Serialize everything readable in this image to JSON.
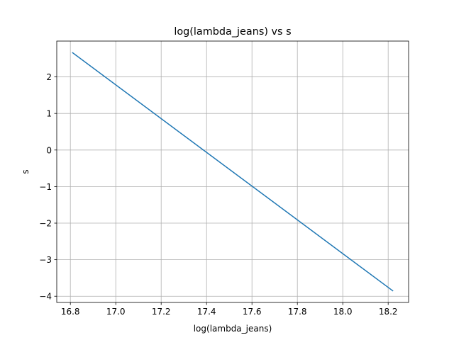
{
  "chart_data": {
    "type": "line",
    "title": "log(lambda_jeans) vs s",
    "xlabel": "log(lambda_jeans)",
    "ylabel": "s",
    "xlim": [
      16.74,
      18.29
    ],
    "ylim": [
      -4.17,
      2.98
    ],
    "x_ticks": [
      16.8,
      17.0,
      17.2,
      17.4,
      17.6,
      17.8,
      18.0,
      18.2
    ],
    "x_tick_labels": [
      "16.8",
      "17.0",
      "17.2",
      "17.4",
      "17.6",
      "17.8",
      "18.0",
      "18.2"
    ],
    "y_ticks": [
      -4,
      -3,
      -2,
      -1,
      0,
      1,
      2
    ],
    "y_tick_labels": [
      "−4",
      "−3",
      "−2",
      "−1",
      "0",
      "1",
      "2"
    ],
    "grid": true,
    "series": [
      {
        "name": "s",
        "color": "#1f77b4",
        "x": [
          16.81,
          18.22
        ],
        "y": [
          2.66,
          -3.85
        ]
      }
    ]
  }
}
